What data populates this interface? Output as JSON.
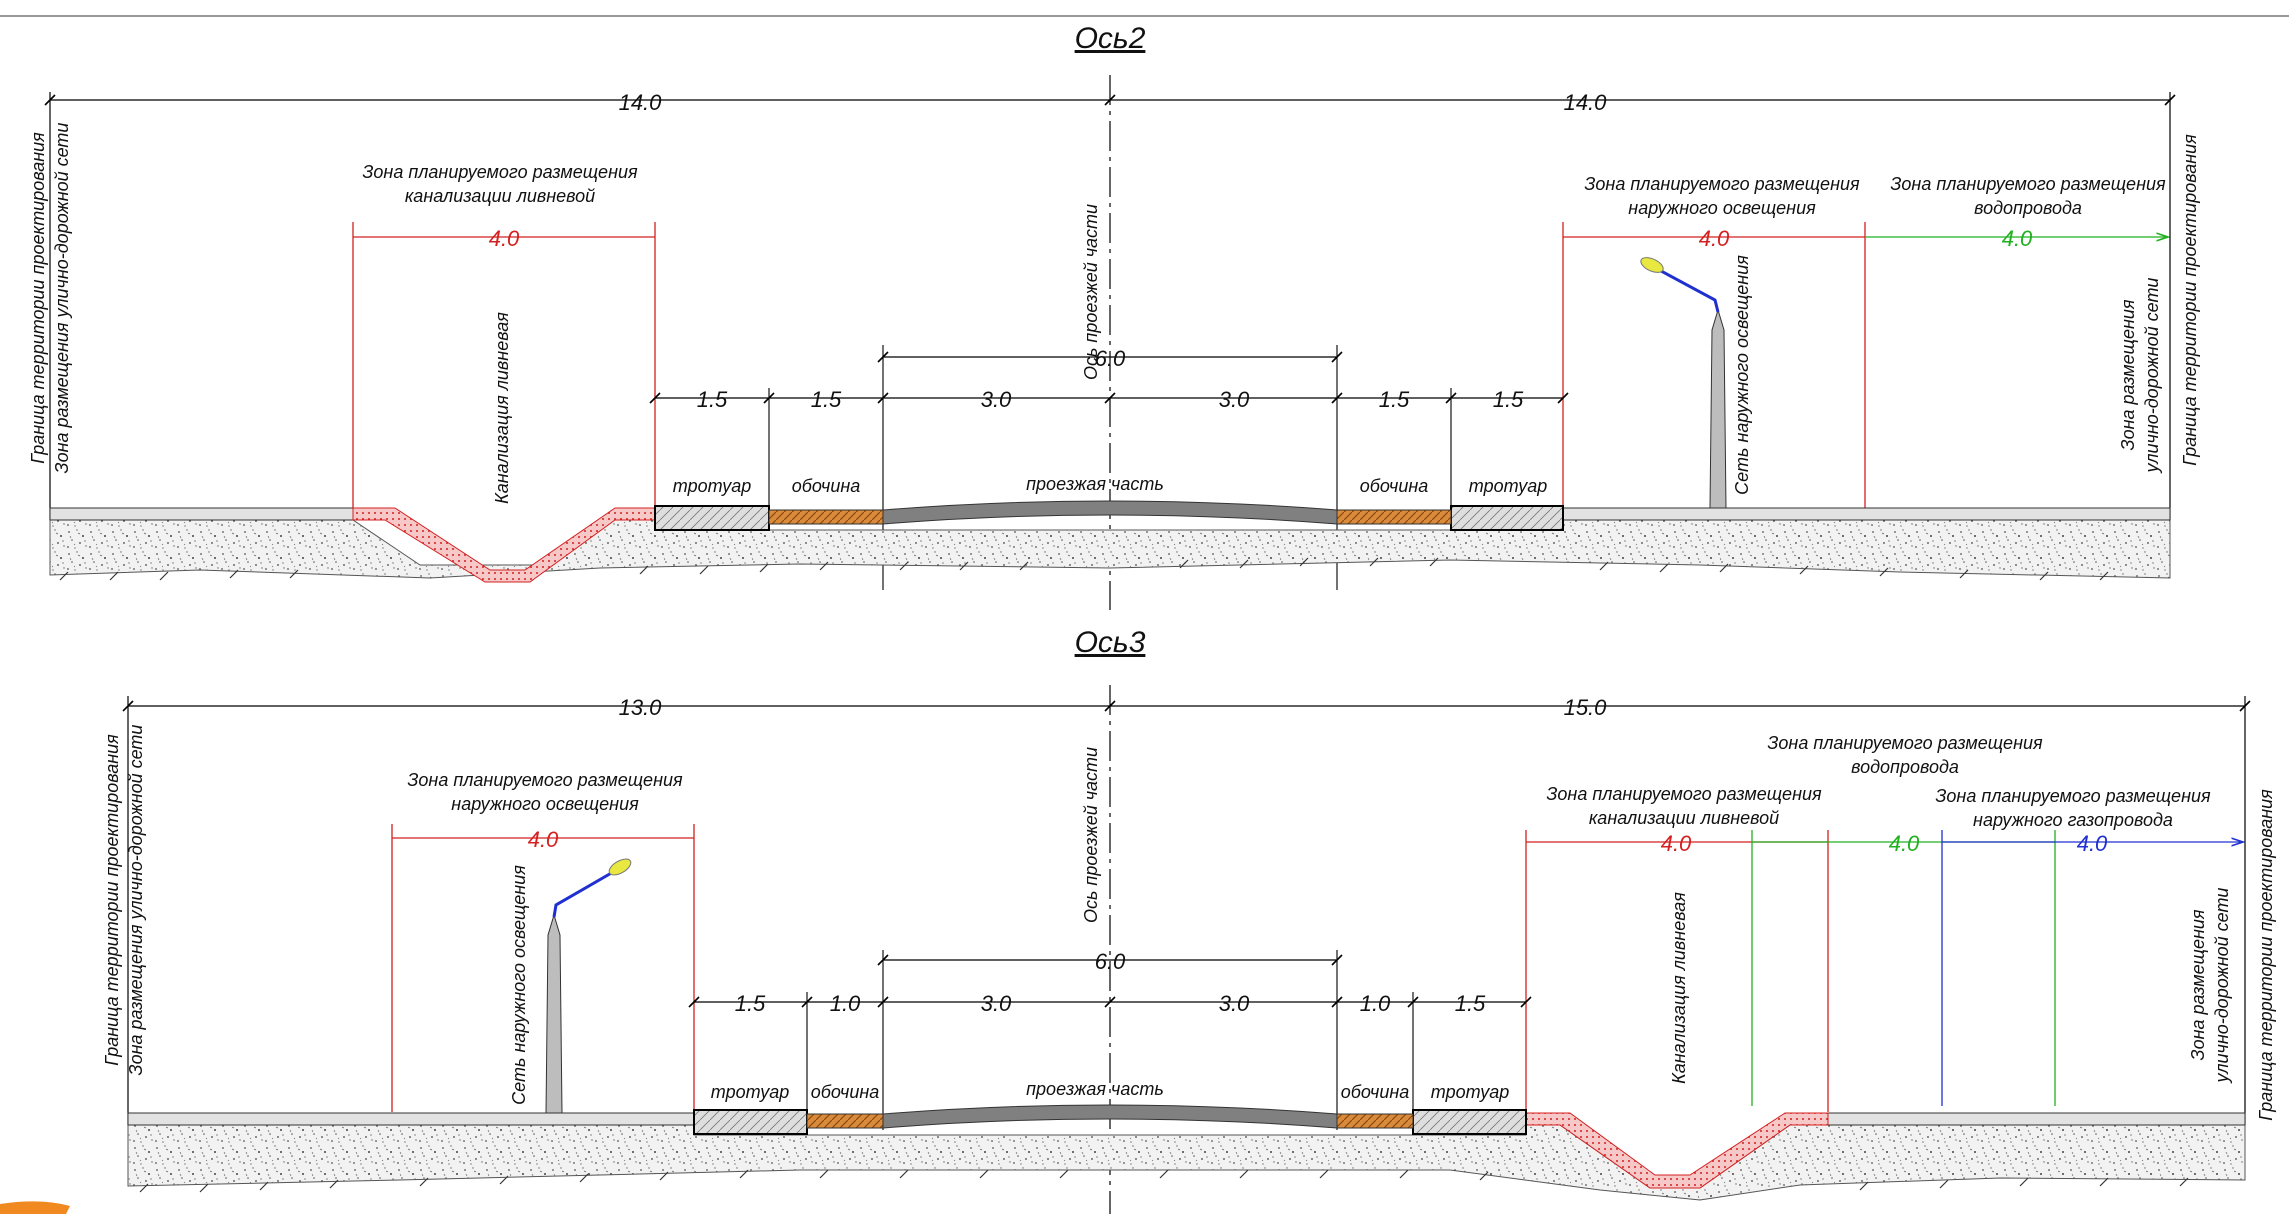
{
  "section_top": {
    "title": "Ось2",
    "axis_label": "Ось проезжей части",
    "left_boundary_label": [
      "Граница территории проектирования",
      "Зона размещения улично-дорожной сети"
    ],
    "right_boundary_label": [
      "Граница территории проектирования"
    ],
    "right_zone_label": [
      "Зона размещения",
      "улично-дорожной сети"
    ],
    "half_widths": [
      "14.0",
      "14.0"
    ],
    "carriageway_total": "6.0",
    "dims": [
      "1.5",
      "1.5",
      "3.0",
      "3.0",
      "1.5",
      "1.5"
    ],
    "elements": [
      "тротуар",
      "обочина",
      "проезжая часть",
      "обочина",
      "тротуар"
    ],
    "zones": [
      {
        "label": [
          "Зона планируемого размещения",
          "канализации ливневой"
        ],
        "width": "4.0",
        "color": "#d42020"
      },
      {
        "label": [
          "Зона планируемого размещения",
          "наружного освещения"
        ],
        "width": "4.0",
        "color": "#d42020"
      },
      {
        "label": [
          "Зона планируемого размещения",
          "водопровода"
        ],
        "width": "4.0",
        "color": "#20b020"
      }
    ],
    "vertical_labels": [
      "Канализация ливневая",
      "Сеть наружного освещения"
    ]
  },
  "section_bottom": {
    "title": "Ось3",
    "axis_label": "Ось проезжей части",
    "left_boundary_label": [
      "Граница территории проектирования",
      "Зона размещения улично-дорожной сети"
    ],
    "right_boundary_label": [
      "Граница территории проектирования"
    ],
    "right_zone_label": [
      "Зона размещения",
      "улично-дорожной сети"
    ],
    "half_widths": [
      "13.0",
      "15.0"
    ],
    "carriageway_total": "6.0",
    "dims": [
      "1.5",
      "1.0",
      "3.0",
      "3.0",
      "1.0",
      "1.5"
    ],
    "elements": [
      "тротуар",
      "обочина",
      "проезжая часть",
      "обочина",
      "тротуар"
    ],
    "zones": [
      {
        "label": [
          "Зона планируемого размещения",
          "наружного освещения"
        ],
        "width": "4.0",
        "color": "#d42020"
      },
      {
        "label": [
          "Зона планируемого размещения",
          "канализации ливневой"
        ],
        "width": "4.0",
        "color": "#d42020"
      },
      {
        "label": [
          "Зона планируемого размещения",
          "водопровода"
        ],
        "width": "4.0",
        "color": "#20b020"
      },
      {
        "label": [
          "Зона планируемого размещения",
          "наружного газопровода"
        ],
        "width": "4.0",
        "color": "#2030d0"
      }
    ],
    "vertical_labels": [
      "Сеть наружного освещения",
      "Канализация ливневая"
    ]
  }
}
